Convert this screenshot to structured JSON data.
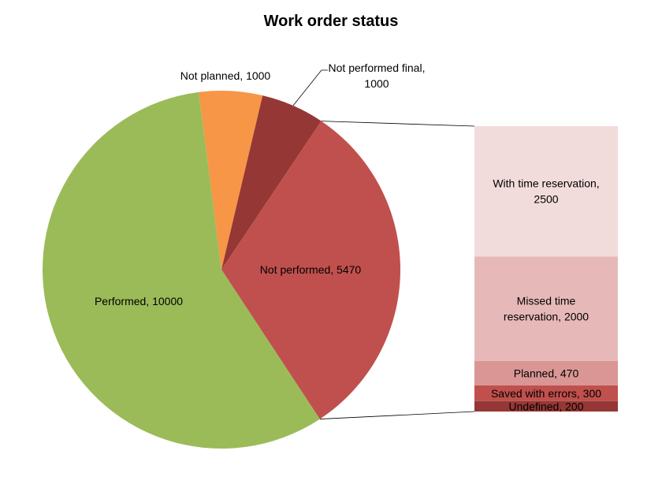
{
  "chart_data": {
    "type": "pie",
    "variant": "bar-of-pie",
    "title": "Work order status",
    "pie": {
      "slices": [
        {
          "name": "Not planned",
          "value": 1000,
          "label": "Not planned, 1000",
          "color": "#F79646"
        },
        {
          "name": "Not performed final",
          "value": 1000,
          "label_lines": [
            "Not performed final,",
            "1000"
          ],
          "color": "#953735"
        },
        {
          "name": "Not performed",
          "value": 5470,
          "label": "Not performed,  5470",
          "color": "#C0504D"
        },
        {
          "name": "Performed",
          "value": 10000,
          "label": "Performed,  10000",
          "color": "#9BBB59"
        }
      ]
    },
    "bar": {
      "parent": "Not performed",
      "segments": [
        {
          "name": "With time reservation",
          "value": 2500,
          "label_lines": [
            "With time reservation,",
            "2500"
          ],
          "color": "#F2DCDB"
        },
        {
          "name": "Missed time reservation",
          "value": 2000,
          "label_lines": [
            "Missed time",
            "reservation, 2000"
          ],
          "color": "#E6B9B8"
        },
        {
          "name": "Planned",
          "value": 470,
          "label_lines": [
            "Planned,  470"
          ],
          "color": "#D99694"
        },
        {
          "name": "Saved with errors",
          "value": 300,
          "label_lines": [
            "Saved with errors, 300"
          ],
          "color": "#C0504D"
        },
        {
          "name": "Undefined",
          "value": 200,
          "label_lines": [
            "Undefined, 200"
          ],
          "color": "#953735"
        }
      ]
    },
    "legend": "none",
    "grid": false
  }
}
